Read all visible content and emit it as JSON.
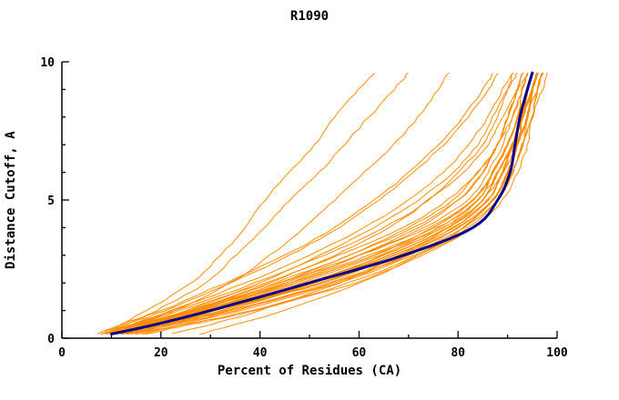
{
  "title": "R1090",
  "chart_data": {
    "type": "line",
    "title": "R1090",
    "xlabel": "Percent of Residues (CA)",
    "ylabel": "Distance Cutoff, A",
    "xlim": [
      0,
      100
    ],
    "ylim": [
      0,
      10
    ],
    "x_major_ticks": [
      0,
      20,
      40,
      60,
      80,
      100
    ],
    "x_minor_step": 10,
    "y_major_ticks": [
      0,
      5,
      10
    ],
    "y_minor_step": 1,
    "grid": false,
    "legend": "none",
    "colors": {
      "models": "#FF8C00",
      "reference": "#00008B",
      "axis": "#000000",
      "background": "#FFFFFF"
    },
    "y_anchors": [
      0.15,
      0.5,
      1,
      2,
      3,
      4,
      5,
      6,
      7,
      8,
      9,
      9.6
    ],
    "reference_series": {
      "name": "reference",
      "color": "#00008B",
      "line_width": 3,
      "x": [
        10,
        19,
        30,
        50,
        69,
        83,
        88,
        90.5,
        91.5,
        92.5,
        94,
        95
      ]
    },
    "model_series": {
      "name": "models",
      "color": "#FF8C00",
      "line_width": 1,
      "x_sets": [
        [
          8,
          12,
          17,
          26,
          32,
          37,
          41,
          46,
          51,
          55,
          60,
          63
        ],
        [
          9,
          13,
          19,
          29,
          35,
          41,
          46,
          52,
          57,
          62,
          67,
          70
        ],
        [
          10,
          15,
          23,
          34,
          42,
          49,
          55,
          61,
          67,
          72,
          76,
          78
        ],
        [
          8,
          13,
          21,
          34,
          46,
          56,
          64,
          71,
          77,
          82,
          86,
          88
        ],
        [
          11,
          17,
          26,
          42,
          55,
          66,
          74,
          80,
          85,
          88,
          90,
          91
        ],
        [
          9,
          15,
          25,
          40,
          52,
          63,
          72,
          79,
          84,
          87,
          90,
          92
        ],
        [
          12,
          18,
          28,
          46,
          60,
          72,
          80,
          85,
          88,
          90,
          92,
          93
        ],
        [
          10,
          16,
          27,
          45,
          60,
          73,
          82,
          86,
          89,
          91,
          93,
          94
        ],
        [
          13,
          20,
          30,
          50,
          65,
          77,
          84,
          87,
          90,
          92,
          94,
          95
        ],
        [
          11,
          18,
          29,
          48,
          64,
          76,
          84,
          88,
          91,
          93,
          94,
          95
        ],
        [
          14,
          22,
          33,
          52,
          67,
          79,
          86,
          89,
          91,
          93,
          95,
          96
        ],
        [
          12,
          19,
          31,
          51,
          66,
          78,
          85,
          88,
          91,
          93,
          94,
          95
        ],
        [
          10,
          17,
          28,
          47,
          63,
          76,
          84,
          87,
          90,
          92,
          94,
          95
        ],
        [
          9,
          16,
          26,
          44,
          60,
          74,
          83,
          87,
          90,
          92,
          94,
          95
        ],
        [
          13,
          21,
          32,
          53,
          68,
          80,
          87,
          90,
          92,
          94,
          95,
          96
        ],
        [
          15,
          23,
          35,
          55,
          70,
          81,
          87,
          90,
          92,
          94,
          95,
          96
        ],
        [
          11,
          18,
          30,
          50,
          66,
          78,
          86,
          89,
          92,
          93,
          95,
          96
        ],
        [
          12,
          20,
          31,
          52,
          68,
          80,
          87,
          90,
          92,
          94,
          95,
          96
        ],
        [
          8,
          14,
          24,
          41,
          56,
          69,
          78,
          84,
          88,
          90,
          92,
          93
        ],
        [
          10,
          16,
          27,
          46,
          62,
          75,
          83,
          87,
          90,
          92,
          93,
          94
        ],
        [
          14,
          21,
          34,
          54,
          69,
          80,
          87,
          90,
          92,
          93,
          95,
          96
        ],
        [
          13,
          20,
          32,
          51,
          67,
          79,
          86,
          89,
          91,
          93,
          94,
          95
        ],
        [
          9,
          15,
          26,
          43,
          58,
          71,
          80,
          85,
          88,
          91,
          93,
          94
        ],
        [
          11,
          17,
          29,
          49,
          65,
          77,
          85,
          88,
          91,
          93,
          94,
          95
        ],
        [
          12,
          19,
          30,
          50,
          66,
          78,
          85,
          88,
          91,
          93,
          94,
          95
        ],
        [
          10,
          16,
          28,
          47,
          63,
          75,
          83,
          87,
          90,
          92,
          94,
          95
        ],
        [
          15,
          24,
          36,
          56,
          71,
          82,
          88,
          91,
          93,
          94,
          96,
          97
        ],
        [
          13,
          22,
          34,
          55,
          70,
          81,
          88,
          91,
          93,
          95,
          96,
          97
        ],
        [
          16,
          25,
          38,
          58,
          72,
          83,
          88,
          91,
          93,
          95,
          96,
          97
        ],
        [
          7,
          12,
          20,
          33,
          45,
          55,
          63,
          70,
          76,
          81,
          85,
          87
        ],
        [
          22,
          30,
          40,
          56,
          68,
          78,
          85,
          89,
          91,
          93,
          95,
          96
        ],
        [
          28,
          35,
          45,
          60,
          72,
          81,
          87,
          90,
          92,
          94,
          95,
          96
        ],
        [
          10,
          14,
          22,
          37,
          50,
          61,
          70,
          77,
          82,
          86,
          89,
          91
        ],
        [
          12,
          17,
          27,
          44,
          58,
          70,
          79,
          84,
          88,
          90,
          92,
          94
        ],
        [
          9,
          14,
          23,
          39,
          53,
          65,
          74,
          81,
          86,
          89,
          92,
          93
        ],
        [
          17,
          26,
          39,
          59,
          73,
          83,
          89,
          92,
          94,
          95,
          97,
          98
        ]
      ]
    }
  }
}
